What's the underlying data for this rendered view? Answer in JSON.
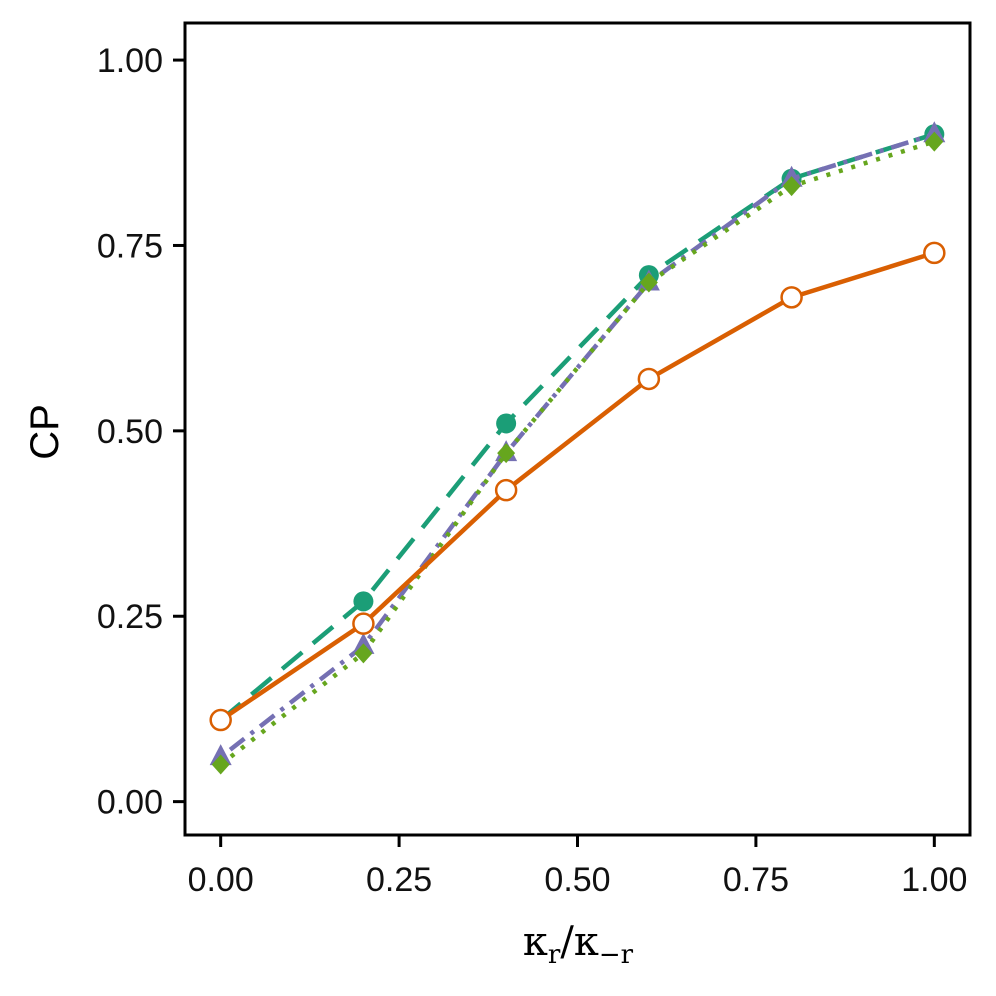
{
  "chart_data": {
    "type": "line",
    "title": "",
    "xlabel": {
      "base1": "κ",
      "sub1": "r",
      "slash": "/",
      "base2": "κ",
      "sub2": "−r"
    },
    "ylabel": "CP",
    "xlim": [
      -0.05,
      1.05
    ],
    "ylim": [
      -0.045,
      1.05
    ],
    "x_ticks": [
      0.0,
      0.25,
      0.5,
      0.75,
      1.0
    ],
    "y_ticks": [
      0.0,
      0.25,
      0.5,
      0.75,
      1.0
    ],
    "x_tick_labels": [
      "0.00",
      "0.25",
      "0.50",
      "0.75",
      "1.00"
    ],
    "y_tick_labels": [
      "0.00",
      "0.25",
      "0.50",
      "0.75",
      "1.00"
    ],
    "grid": false,
    "legend": "none",
    "x": [
      0.0,
      0.2,
      0.4,
      0.6,
      0.8,
      1.0
    ],
    "series": [
      {
        "name": "series-teal-dashed",
        "color": "#1b9e77",
        "dash": "dashed",
        "marker": "circle-filled",
        "values": [
          0.11,
          0.27,
          0.51,
          0.71,
          0.84,
          0.9
        ]
      },
      {
        "name": "series-purple-dotdash",
        "color": "#7570b3",
        "dash": "dotdash",
        "marker": "triangle",
        "values": [
          0.06,
          0.21,
          0.47,
          0.7,
          0.84,
          0.9
        ]
      },
      {
        "name": "series-green-dotted",
        "color": "#66a61e",
        "dash": "dotted",
        "marker": "diamond",
        "values": [
          0.05,
          0.2,
          0.47,
          0.7,
          0.83,
          0.89
        ]
      },
      {
        "name": "series-orange-solid",
        "color": "#d95f02",
        "dash": "solid",
        "marker": "circle-open",
        "values": [
          0.11,
          0.24,
          0.42,
          0.57,
          0.68,
          0.74
        ]
      }
    ]
  }
}
